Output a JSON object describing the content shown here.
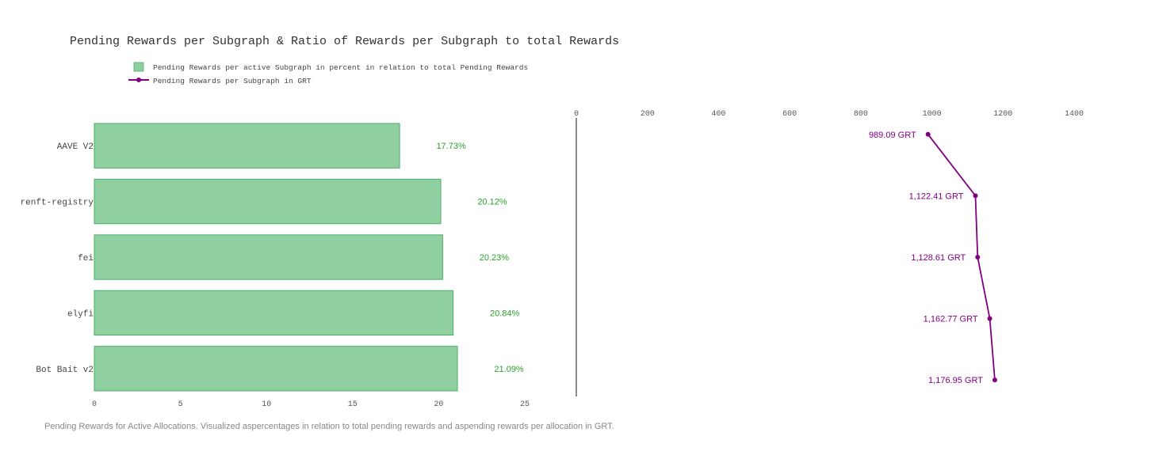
{
  "title": "Pending Rewards per Subgraph & Ratio of Rewards per Subgraph to total Rewards",
  "caption": "Pending Rewards for Active Allocations. Visualized aspercentages in relation to total pending rewards and aspending rewards per allocation in GRT.",
  "colors": {
    "bar_fill": "#90cfa0",
    "bar_stroke": "#4caf6b",
    "bar_label": "#2ca02c",
    "line": "#800080",
    "axis_text": "#555555",
    "title_text": "#333333",
    "caption_text": "#888888"
  },
  "legend": {
    "placement": "top-left",
    "items": [
      {
        "label": "Pending Rewards per active Subgraph in percent in relation to total Pending Rewards",
        "symbol": "square",
        "color": "#90cfa0"
      },
      {
        "label": "Pending Rewards per Subgraph in GRT",
        "symbol": "line-marker",
        "color": "#800080"
      }
    ]
  },
  "chart_data": [
    {
      "type": "bar",
      "orientation": "horizontal",
      "categories": [
        "AAVE V2",
        "renft-registry",
        "fei",
        "elyfi",
        "Bot Bait v2"
      ],
      "values": [
        17.73,
        20.12,
        20.23,
        20.84,
        21.09
      ],
      "data_labels": [
        "17.73%",
        "20.12%",
        "20.23%",
        "20.84%",
        "21.09%"
      ],
      "xlim": [
        0,
        25
      ],
      "xticks": [
        0,
        5,
        10,
        15,
        20,
        25
      ],
      "grid": false
    },
    {
      "type": "line",
      "categories": [
        "AAVE V2",
        "renft-registry",
        "fei",
        "elyfi",
        "Bot Bait v2"
      ],
      "values": [
        989.09,
        1122.41,
        1128.61,
        1162.77,
        1176.95
      ],
      "data_labels": [
        "989.09 GRT",
        "1,122.41 GRT",
        "1,128.61 GRT",
        "1,162.77 GRT",
        "1,176.95 GRT"
      ],
      "xlim": [
        0,
        1400
      ],
      "xticks": [
        0,
        200,
        400,
        600,
        800,
        1000,
        1200,
        1400
      ],
      "xaxis_position": "top",
      "grid": false
    }
  ]
}
